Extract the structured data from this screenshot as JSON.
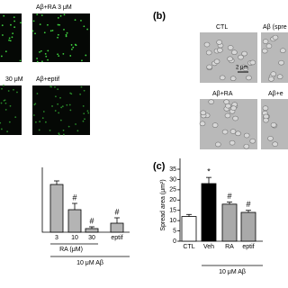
{
  "panel_a": {
    "image_labels": [
      "Aβ+RA 3 μM",
      "30 μM",
      "Aβ+eptif"
    ]
  },
  "panel_b": {
    "label": "(b)",
    "image_labels": [
      "CTL",
      "Aβ (spre",
      "Aβ+RA",
      "Aβ+e"
    ],
    "scale_label": "2 μm"
  },
  "chart_data": [
    {
      "type": "bar",
      "categories": [
        "3",
        "10",
        "30",
        "eptif"
      ],
      "values": [
        53,
        25,
        4,
        10
      ],
      "errors": [
        4,
        7,
        2,
        6
      ],
      "markers": [
        null,
        "#",
        "#",
        "#"
      ],
      "color": "#b4b4b4",
      "xlabel": "RA (μM)",
      "group_label": "10 μM Aβ",
      "ylim": [
        0,
        60
      ]
    },
    {
      "type": "bar",
      "panel_label": "(c)",
      "categories": [
        "CTL",
        "Veh",
        "RA",
        "eptif"
      ],
      "values": [
        12,
        28,
        18,
        14
      ],
      "errors": [
        1,
        3,
        1,
        1
      ],
      "markers": [
        null,
        "*",
        "#",
        "#"
      ],
      "colors": [
        "#ffffff",
        "#000000",
        "#a9a9a9",
        "#a9a9a9"
      ],
      "ylabel": "Spread area (μm²)",
      "group_label": "10 μM Aβ",
      "ylim": [
        0,
        35
      ],
      "yticks": [
        0,
        5,
        10,
        15,
        20,
        25,
        30,
        35
      ]
    }
  ]
}
